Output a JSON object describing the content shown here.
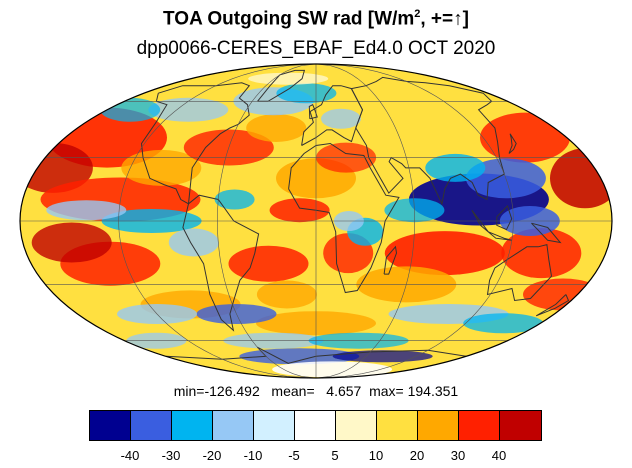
{
  "title": {
    "main": "TOA Outgoing SW rad [W/m",
    "sup": "2",
    "suffix": ", +=↑]"
  },
  "subtitle": "dpp0066-CERES_EBAF_Ed4.0 OCT 2020",
  "stats": {
    "text": "min=-126.492   mean=   4.657  max= 194.351",
    "min": -126.492,
    "mean": 4.657,
    "max": 194.351
  },
  "colorbar": {
    "colors": [
      "#000090",
      "#3a5ee0",
      "#00b4f0",
      "#96c8f5",
      "#d2f0ff",
      "#ffffff",
      "#fff8c8",
      "#ffe040",
      "#ffa800",
      "#ff2000",
      "#c00000"
    ],
    "tick_labels": [
      "-40",
      "-30",
      "-20",
      "-10",
      "-5",
      "5",
      "10",
      "20",
      "30",
      "40"
    ]
  },
  "map": {
    "projection": "mollweide",
    "graticule": true,
    "coastlines": true
  }
}
